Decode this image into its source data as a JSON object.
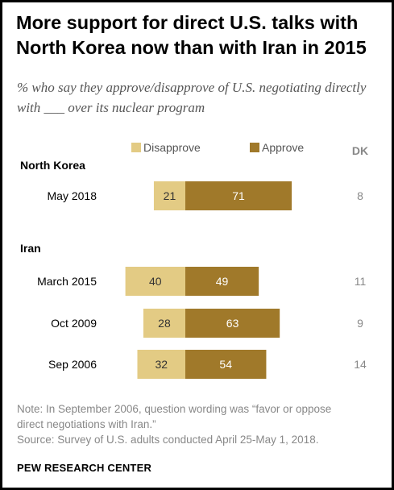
{
  "title": "More support for direct U.S. talks with North Korea now than with Iran in 2015",
  "subtitle": "% who say they approve/disapprove of U.S. negotiating directly with ___ over its nuclear program",
  "legend": {
    "disapprove": "Disapprove",
    "approve": "Approve",
    "dk": "DK"
  },
  "colors": {
    "disapprove": "#E3CB84",
    "approve": "#A0792A",
    "dk_text": "#888888"
  },
  "chart_data": {
    "type": "bar",
    "orientation": "horizontal",
    "stacking": "diverging",
    "groups": [
      {
        "name": "North Korea",
        "rows": [
          {
            "label": "May 2018",
            "disapprove": 21,
            "approve": 71,
            "dk": 8
          }
        ]
      },
      {
        "name": "Iran",
        "rows": [
          {
            "label": "March 2015",
            "disapprove": 40,
            "approve": 49,
            "dk": 11
          },
          {
            "label": "Oct 2009",
            "disapprove": 28,
            "approve": 63,
            "dk": 9
          },
          {
            "label": "Sep 2006",
            "disapprove": 32,
            "approve": 54,
            "dk": 14
          }
        ]
      }
    ],
    "series": [
      {
        "name": "Disapprove"
      },
      {
        "name": "Approve"
      }
    ],
    "legend_position": "top"
  },
  "note_lines": [
    "Note: In September 2006, question wording was “favor or oppose",
    "direct negotiations with Iran.”",
    "Source: Survey of U.S. adults conducted April 25-May 1, 2018."
  ],
  "footer": "PEW RESEARCH CENTER"
}
